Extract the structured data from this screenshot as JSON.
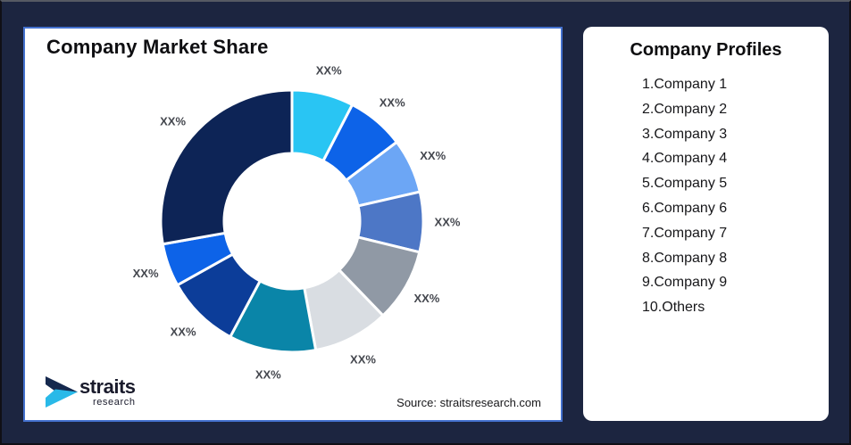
{
  "page": {
    "background": "#1C2540",
    "card_border": "#4471CE"
  },
  "chart_data": {
    "type": "pie",
    "subtype": "donut",
    "title": "Company Market Share",
    "start_angle_deg": 0,
    "direction": "clockwise",
    "inner_radius_ratio": 0.52,
    "legend_position": "none",
    "slices": [
      {
        "label": "XX%",
        "value": 7.6,
        "color": "#29C5F3"
      },
      {
        "label": "XX%",
        "value": 7.1,
        "color": "#0D63E8"
      },
      {
        "label": "XX%",
        "value": 6.7,
        "color": "#6CA6F5"
      },
      {
        "label": "XX%",
        "value": 7.4,
        "color": "#4D77C6"
      },
      {
        "label": "XX%",
        "value": 9.0,
        "color": "#9099A5"
      },
      {
        "label": "XX%",
        "value": 9.3,
        "color": "#D9DDE2"
      },
      {
        "label": "XX%",
        "value": 10.7,
        "color": "#0A85A8"
      },
      {
        "label": "XX%",
        "value": 9.1,
        "color": "#0C3D99"
      },
      {
        "label": "XX%",
        "value": 5.3,
        "color": "#0D63E8"
      },
      {
        "label": "XX%",
        "value": 27.8,
        "color": "#0D2456"
      }
    ],
    "label_color": "#44474E",
    "source": "Source: straitsresearch.com"
  },
  "profiles": {
    "title": "Company Profiles",
    "items": [
      "1.Company 1",
      "2.Company 2",
      "3.Company 3",
      "4.Company 4",
      "5.Company 5",
      "6.Company 6",
      "7.Company 7",
      "8.Company 8",
      "9.Company 9",
      "10.Others"
    ]
  },
  "logo": {
    "text": "straits",
    "subtext": "research",
    "mark_navy": "#16294E",
    "mark_cyan": "#29B9E8"
  }
}
